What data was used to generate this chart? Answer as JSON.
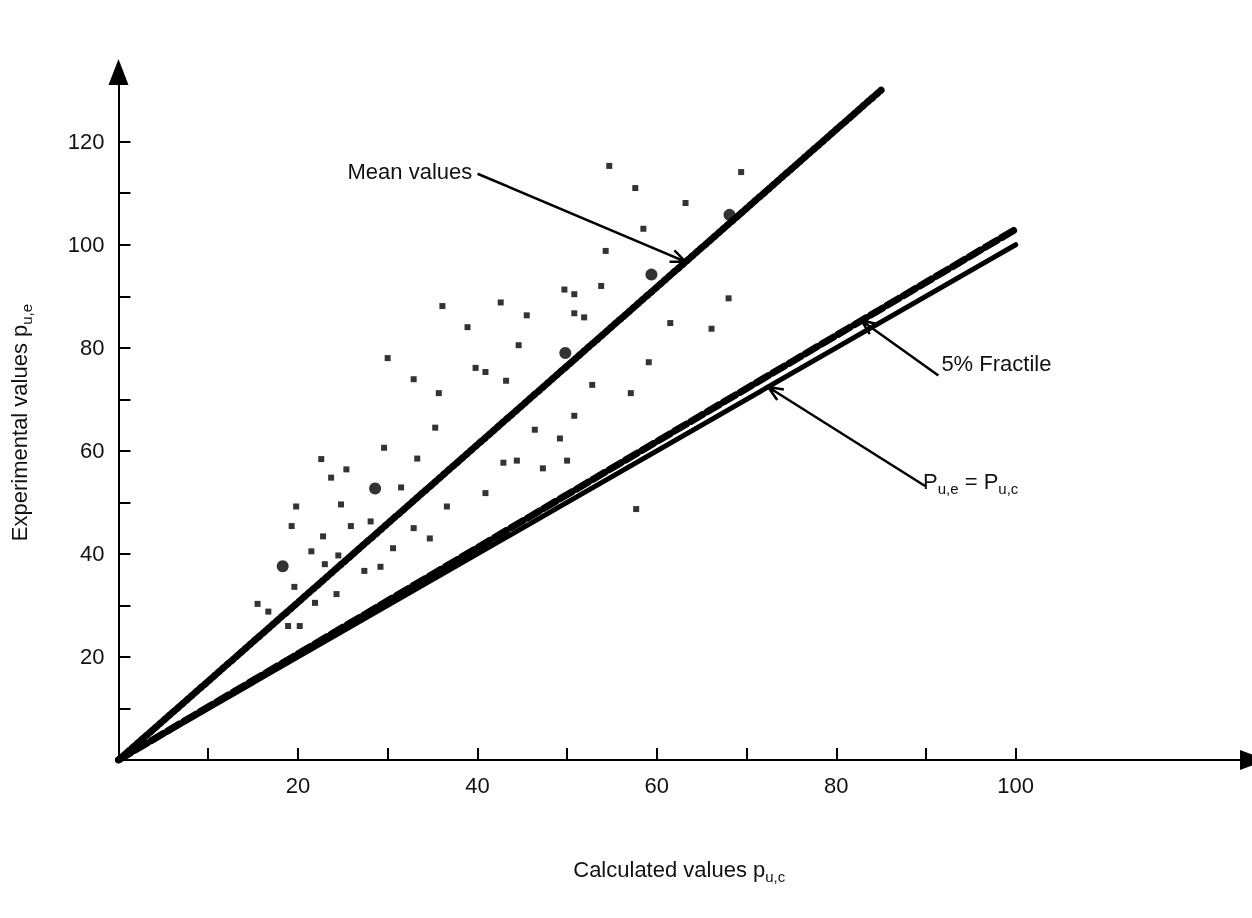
{
  "chart_data": {
    "type": "scatter",
    "xlabel": "Calculated values p$_{u,c}$",
    "ylabel": "Experimental values p$_{u,e}$",
    "xlim": [
      0,
      125
    ],
    "ylim": [
      0,
      131
    ],
    "xticks": [
      {
        "value": 10,
        "label": null
      },
      20,
      {
        "value": 30,
        "label": null
      },
      40,
      {
        "value": 50,
        "label": null
      },
      60,
      {
        "value": 70,
        "label": null
      },
      80,
      {
        "value": 90,
        "label": null
      },
      100
    ],
    "yticks": [
      {
        "value": 10,
        "label": null
      },
      20,
      {
        "value": 30,
        "label": null
      },
      40,
      {
        "value": 50,
        "label": null
      },
      60,
      {
        "value": 70,
        "label": null
      },
      80,
      {
        "value": 90,
        "label": null
      },
      100,
      {
        "value": 110,
        "label": null
      },
      120
    ],
    "grid": false,
    "series": [
      {
        "marker": "square",
        "color": "#000000",
        "x": [
          36.1,
          42.6,
          38.9,
          30.0,
          39.8,
          40.9,
          32.9,
          35.7,
          35.3,
          29.6,
          33.3,
          22.6,
          25.4,
          23.7,
          31.5,
          40.9,
          19.8,
          24.8,
          36.6,
          19.3,
          25.9,
          28.1,
          22.8,
          32.9,
          34.7,
          21.5,
          30.6,
          24.5,
          23.0,
          27.4,
          29.2,
          19.6,
          24.3,
          15.5,
          16.7,
          21.9,
          18.9,
          20.2,
          54.7,
          57.6,
          69.4,
          63.2,
          58.5,
          54.3,
          49.7,
          50.8,
          53.8,
          45.5,
          50.8,
          51.9,
          68.0,
          61.5,
          66.1,
          44.6,
          43.2,
          59.1,
          52.8,
          57.1,
          50.8,
          46.4,
          49.2,
          42.9,
          44.4,
          47.3,
          50.0,
          57.7
        ],
        "values": [
          88.1,
          88.8,
          84.0,
          78.0,
          76.1,
          75.3,
          73.9,
          71.2,
          64.5,
          60.6,
          58.5,
          58.4,
          56.4,
          54.8,
          52.9,
          51.8,
          49.2,
          49.6,
          49.2,
          45.4,
          45.4,
          46.3,
          43.4,
          45.0,
          43.0,
          40.5,
          41.1,
          39.7,
          38.0,
          36.7,
          37.5,
          33.6,
          32.2,
          30.3,
          28.8,
          30.5,
          26.0,
          26.0,
          115.3,
          111.0,
          114.1,
          108.1,
          103.1,
          98.8,
          91.3,
          90.4,
          92.0,
          86.3,
          86.7,
          85.9,
          89.6,
          84.8,
          83.7,
          80.5,
          73.6,
          77.2,
          72.8,
          71.2,
          66.8,
          64.1,
          62.4,
          57.7,
          58.1,
          56.6,
          58.1,
          48.7
        ]
      },
      {
        "marker": "circle",
        "color": "#000000",
        "x": [
          18.3,
          28.6,
          49.8,
          59.4,
          68.1
        ],
        "values": [
          37.6,
          52.7,
          79.0,
          94.2,
          105.8
        ]
      },
      {
        "type": "line",
        "marker": "none",
        "line_style": "dotted",
        "color": "#000000",
        "x": [
          0,
          85
        ],
        "values": [
          0,
          130
        ]
      },
      {
        "type": "line",
        "marker": "none",
        "line_style": "dashed",
        "color": "#000000",
        "x": [
          0,
          100
        ],
        "values": [
          0,
          103
        ]
      },
      {
        "type": "line",
        "marker": "none",
        "line_style": "solid",
        "color": "#000000",
        "x": [
          0,
          100
        ],
        "values": [
          0,
          100
        ]
      }
    ],
    "annotations": [
      {
        "text": "Mean values",
        "x": 63.2,
        "y": 96.7
      },
      {
        "text": "5% Fractile",
        "x": 82.8,
        "y": 85.3
      },
      {
        "text": "P$_{u,e}$ = P$_{u,c}$",
        "x": 72.4,
        "y": 72.4
      }
    ]
  }
}
